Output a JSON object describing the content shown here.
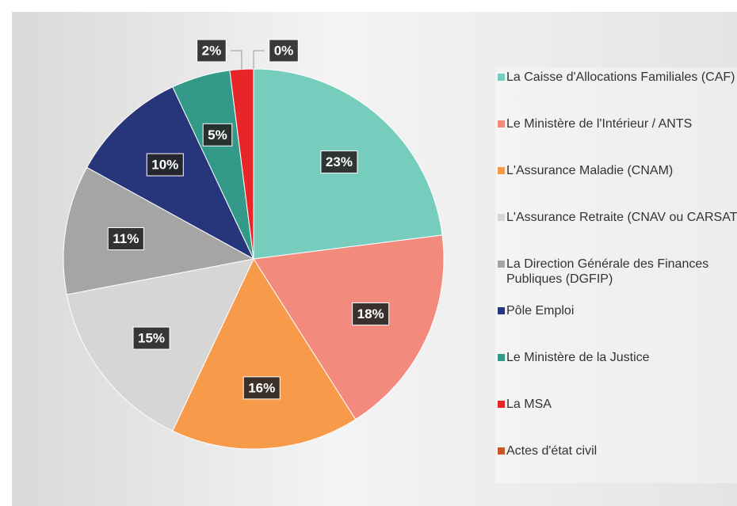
{
  "chart_data": {
    "type": "pie",
    "categories": [
      "La Caisse d'Allocations Familiales (CAF)",
      "Le Ministère de l'Intérieur / ANTS",
      "L'Assurance Maladie (CNAM)",
      "L'Assurance Retraite (CNAV ou CARSAT)",
      "La Direction Générale des Finances Publiques (DGFIP)",
      "Pôle Emploi",
      "Le Ministère de la Justice",
      "La MSA",
      "Actes d'état civil"
    ],
    "values": [
      23,
      18,
      16,
      15,
      11,
      10,
      5,
      2,
      0
    ],
    "value_labels": [
      "23%",
      "18%",
      "16%",
      "15%",
      "11%",
      "10%",
      "5%",
      "2%",
      "0%"
    ],
    "colors": [
      "#76cdbd",
      "#f28b7d",
      "#f79a4a",
      "#d6d6d6",
      "#a5a5a5",
      "#27357a",
      "#339a8a",
      "#e8262a",
      "#c8582a"
    ],
    "legend": "right"
  }
}
